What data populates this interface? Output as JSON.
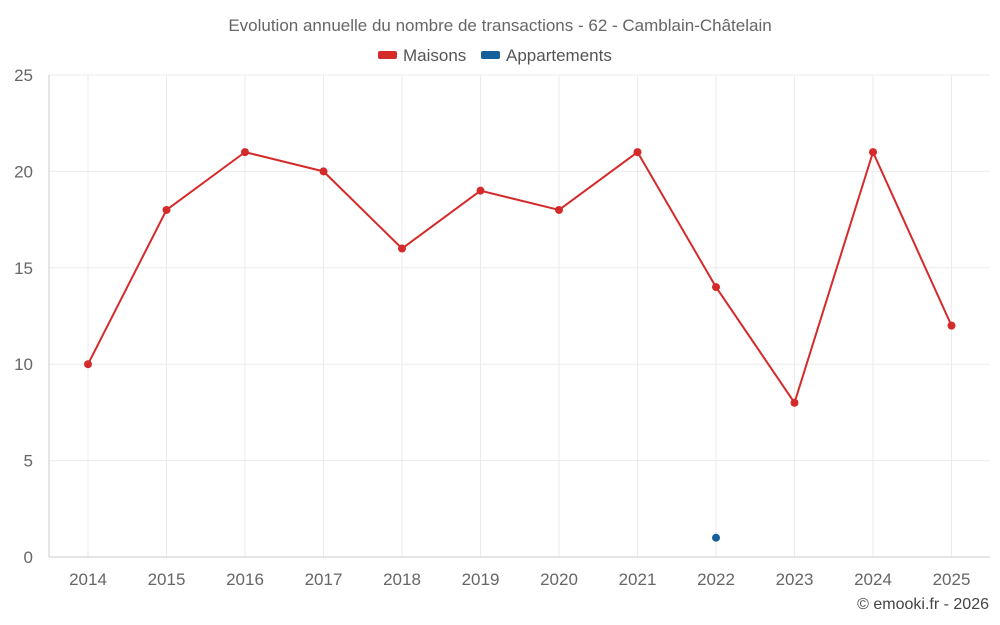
{
  "chart_data": {
    "type": "line",
    "title": "Evolution annuelle du nombre de transactions - 62 - Camblain-Châtelain",
    "categories": [
      "2014",
      "2015",
      "2016",
      "2017",
      "2018",
      "2019",
      "2020",
      "2021",
      "2022",
      "2023",
      "2024",
      "2025"
    ],
    "series": [
      {
        "name": "Maisons",
        "color": "#d42a2a",
        "values": [
          10,
          18,
          21,
          20,
          16,
          19,
          18,
          21,
          14,
          8,
          21,
          12
        ]
      },
      {
        "name": "Appartements",
        "color": "#15609a",
        "values": [
          null,
          null,
          null,
          null,
          null,
          null,
          null,
          null,
          1,
          null,
          null,
          null
        ]
      }
    ],
    "ylim": [
      0,
      25
    ],
    "yticks": [
      0,
      5,
      10,
      15,
      20,
      25
    ],
    "grid": true,
    "legend_position": "top-center",
    "xlabel": "",
    "ylabel": ""
  },
  "credit": "© emooki.fr - 2026"
}
